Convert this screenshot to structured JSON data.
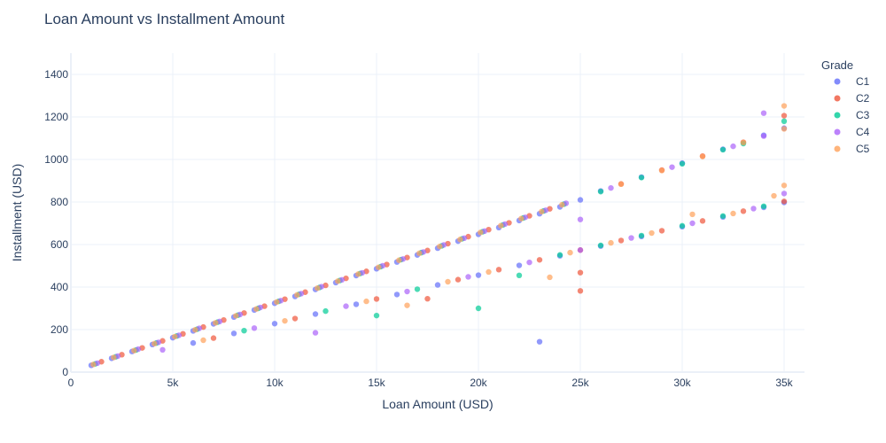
{
  "chart_data": {
    "type": "scatter",
    "title": "Loan Amount vs Installment Amount",
    "xlabel": "Loan Amount (USD)",
    "ylabel": "Installment (USD)",
    "xlim": [
      0,
      36000
    ],
    "ylim": [
      0,
      1500
    ],
    "x_ticks": [
      0,
      5000,
      10000,
      15000,
      20000,
      25000,
      30000,
      35000
    ],
    "x_tick_labels": [
      "0",
      "5k",
      "10k",
      "15k",
      "20k",
      "25k",
      "30k",
      "35k"
    ],
    "y_ticks": [
      0,
      200,
      400,
      600,
      800,
      1000,
      1200,
      1400
    ],
    "y_tick_labels": [
      "0",
      "200",
      "400",
      "600",
      "800",
      "1000",
      "1200",
      "1400"
    ],
    "grid": true,
    "legend_title": "Grade",
    "legend_placement": "top-right",
    "series": [
      {
        "name": "C1",
        "color": "#636efa",
        "points": [
          [
            1000,
            32
          ],
          [
            2000,
            65
          ],
          [
            3000,
            97
          ],
          [
            4000,
            130
          ],
          [
            5000,
            162
          ],
          [
            6000,
            194
          ],
          [
            7000,
            227
          ],
          [
            8000,
            259
          ],
          [
            9000,
            292
          ],
          [
            10000,
            324
          ],
          [
            11000,
            356
          ],
          [
            12000,
            389
          ],
          [
            13000,
            421
          ],
          [
            14000,
            454
          ],
          [
            15000,
            486
          ],
          [
            16000,
            518
          ],
          [
            17000,
            551
          ],
          [
            18000,
            583
          ],
          [
            19000,
            616
          ],
          [
            20000,
            648
          ],
          [
            21000,
            680
          ],
          [
            22000,
            713
          ],
          [
            23000,
            745
          ],
          [
            24000,
            777
          ],
          [
            25000,
            810
          ],
          [
            6000,
            137
          ],
          [
            8000,
            182
          ],
          [
            10000,
            228
          ],
          [
            12000,
            273
          ],
          [
            14000,
            319
          ],
          [
            16000,
            365
          ],
          [
            18000,
            410
          ],
          [
            20000,
            456
          ],
          [
            22000,
            502
          ],
          [
            24000,
            547
          ],
          [
            26000,
            593
          ],
          [
            28000,
            638
          ],
          [
            30000,
            684
          ],
          [
            32000,
            730
          ],
          [
            34000,
            775
          ],
          [
            35000,
            798
          ],
          [
            26000,
            852
          ],
          [
            28000,
            917
          ],
          [
            30000,
            983
          ],
          [
            32000,
            1048
          ],
          [
            34000,
            1114
          ],
          [
            35000,
            1147
          ],
          [
            23000,
            143
          ]
        ]
      },
      {
        "name": "C2",
        "color": "#ef553b",
        "points": [
          [
            1500,
            49
          ],
          [
            2500,
            82
          ],
          [
            3500,
            114
          ],
          [
            4500,
            147
          ],
          [
            5500,
            180
          ],
          [
            6500,
            212
          ],
          [
            7500,
            245
          ],
          [
            8500,
            278
          ],
          [
            9500,
            310
          ],
          [
            10500,
            343
          ],
          [
            11500,
            376
          ],
          [
            12500,
            408
          ],
          [
            13500,
            441
          ],
          [
            14500,
            474
          ],
          [
            15500,
            506
          ],
          [
            16500,
            539
          ],
          [
            17500,
            572
          ],
          [
            18500,
            604
          ],
          [
            19500,
            637
          ],
          [
            20500,
            670
          ],
          [
            21500,
            702
          ],
          [
            22500,
            735
          ],
          [
            23500,
            768
          ],
          [
            7000,
            160
          ],
          [
            11000,
            252
          ],
          [
            15000,
            344
          ],
          [
            17500,
            345
          ],
          [
            19000,
            435
          ],
          [
            21000,
            482
          ],
          [
            23000,
            528
          ],
          [
            25000,
            574
          ],
          [
            25000,
            468
          ],
          [
            25000,
            382
          ],
          [
            27000,
            619
          ],
          [
            29000,
            665
          ],
          [
            31000,
            711
          ],
          [
            33000,
            757
          ],
          [
            35000,
            803
          ],
          [
            27000,
            885
          ],
          [
            29000,
            950
          ],
          [
            31000,
            1016
          ],
          [
            33000,
            1081
          ],
          [
            35000,
            1206
          ]
        ]
      },
      {
        "name": "C3",
        "color": "#00cc96",
        "points": [
          [
            1200,
            39
          ],
          [
            2200,
            72
          ],
          [
            3200,
            104
          ],
          [
            4200,
            137
          ],
          [
            5200,
            170
          ],
          [
            6200,
            202
          ],
          [
            7200,
            235
          ],
          [
            8200,
            268
          ],
          [
            9200,
            300
          ],
          [
            10200,
            333
          ],
          [
            11200,
            366
          ],
          [
            12200,
            398
          ],
          [
            13200,
            431
          ],
          [
            14200,
            464
          ],
          [
            15200,
            496
          ],
          [
            16200,
            529
          ],
          [
            17200,
            562
          ],
          [
            18200,
            594
          ],
          [
            19200,
            627
          ],
          [
            20200,
            660
          ],
          [
            21200,
            692
          ],
          [
            22200,
            725
          ],
          [
            23200,
            758
          ],
          [
            24200,
            790
          ],
          [
            8500,
            195
          ],
          [
            12500,
            287
          ],
          [
            15000,
            266
          ],
          [
            17000,
            390
          ],
          [
            20000,
            300
          ],
          [
            22000,
            455
          ],
          [
            24000,
            551
          ],
          [
            26000,
            596
          ],
          [
            28000,
            642
          ],
          [
            30000,
            688
          ],
          [
            32000,
            734
          ],
          [
            34000,
            780
          ],
          [
            26000,
            849
          ],
          [
            28000,
            915
          ],
          [
            30000,
            980
          ],
          [
            32000,
            1046
          ],
          [
            33000,
            1075
          ],
          [
            35000,
            1180
          ]
        ]
      },
      {
        "name": "C4",
        "color": "#ab63fa",
        "points": [
          [
            1300,
            42
          ],
          [
            2300,
            75
          ],
          [
            3300,
            108
          ],
          [
            4300,
            140
          ],
          [
            5300,
            173
          ],
          [
            6300,
            206
          ],
          [
            7300,
            238
          ],
          [
            8300,
            271
          ],
          [
            9300,
            304
          ],
          [
            10300,
            336
          ],
          [
            11300,
            369
          ],
          [
            12300,
            402
          ],
          [
            13300,
            434
          ],
          [
            14300,
            467
          ],
          [
            15300,
            500
          ],
          [
            16300,
            532
          ],
          [
            17300,
            565
          ],
          [
            18300,
            598
          ],
          [
            19300,
            630
          ],
          [
            20300,
            663
          ],
          [
            21300,
            696
          ],
          [
            22300,
            728
          ],
          [
            23300,
            761
          ],
          [
            24300,
            794
          ],
          [
            4500,
            105
          ],
          [
            9000,
            207
          ],
          [
            12000,
            185
          ],
          [
            13500,
            310
          ],
          [
            16500,
            379
          ],
          [
            19500,
            448
          ],
          [
            22500,
            516
          ],
          [
            25000,
            574
          ],
          [
            25000,
            718
          ],
          [
            27500,
            631
          ],
          [
            30500,
            700
          ],
          [
            33500,
            769
          ],
          [
            35000,
            840
          ],
          [
            26500,
            866
          ],
          [
            29500,
            964
          ],
          [
            32500,
            1062
          ],
          [
            34000,
            1110
          ],
          [
            34000,
            1218
          ]
        ]
      },
      {
        "name": "C5",
        "color": "#ffa15a",
        "points": [
          [
            1100,
            36
          ],
          [
            2100,
            69
          ],
          [
            3100,
            101
          ],
          [
            4100,
            134
          ],
          [
            5100,
            167
          ],
          [
            6100,
            199
          ],
          [
            7100,
            232
          ],
          [
            8100,
            265
          ],
          [
            9100,
            297
          ],
          [
            10100,
            330
          ],
          [
            11100,
            363
          ],
          [
            12100,
            395
          ],
          [
            13100,
            428
          ],
          [
            14100,
            461
          ],
          [
            15100,
            493
          ],
          [
            16100,
            526
          ],
          [
            17100,
            559
          ],
          [
            18100,
            591
          ],
          [
            19100,
            624
          ],
          [
            20100,
            657
          ],
          [
            21100,
            689
          ],
          [
            22100,
            722
          ],
          [
            23100,
            755
          ],
          [
            24100,
            787
          ],
          [
            6500,
            150
          ],
          [
            10500,
            241
          ],
          [
            14500,
            333
          ],
          [
            16500,
            314
          ],
          [
            18500,
            425
          ],
          [
            20500,
            471
          ],
          [
            23500,
            446
          ],
          [
            24500,
            562
          ],
          [
            26500,
            608
          ],
          [
            28500,
            654
          ],
          [
            30500,
            742
          ],
          [
            32500,
            746
          ],
          [
            34500,
            829
          ],
          [
            35000,
            878
          ],
          [
            27000,
            884
          ],
          [
            29000,
            948
          ],
          [
            31000,
            1014
          ],
          [
            33000,
            1080
          ],
          [
            35000,
            1252
          ],
          [
            35000,
            1144
          ]
        ]
      }
    ]
  }
}
